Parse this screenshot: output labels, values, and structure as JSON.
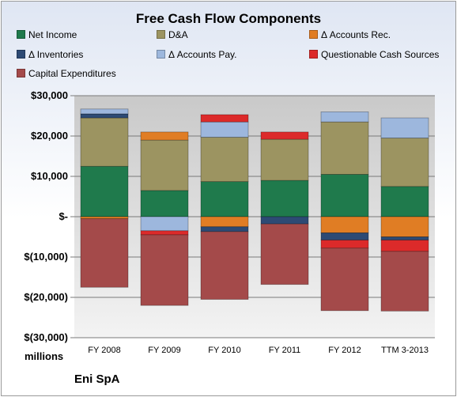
{
  "chart_data": {
    "type": "bar",
    "stacked": true,
    "title": "Free Cash Flow Components",
    "categories": [
      "FY 2008",
      "FY 2009",
      "FY 2010",
      "FY 2011",
      "FY 2012",
      "TTM 3-2013"
    ],
    "ylim": [
      -30000,
      30000
    ],
    "yticks": [
      30000,
      20000,
      10000,
      0,
      -10000,
      -20000,
      -30000
    ],
    "ytick_labels": [
      "$30,000",
      "$20,000",
      "$10,000",
      "$-",
      "$(10,000)",
      "$(20,000)",
      "$(30,000)"
    ],
    "ylabel": "millions",
    "legend_position": "top",
    "series": [
      {
        "name": "Net Income",
        "color": "#1f7a4c",
        "values": [
          12500,
          6500,
          8700,
          9000,
          10500,
          7500
        ]
      },
      {
        "name": "D&A",
        "color": "#9c9461",
        "values": [
          12000,
          12500,
          11000,
          10200,
          13000,
          12000
        ]
      },
      {
        "name": "Δ Accounts Rec.",
        "color": "#e07d24",
        "values": [
          -500,
          2000,
          -2500,
          0,
          -4000,
          -5000
        ]
      },
      {
        "name": "Δ Inventories",
        "color": "#2d4a74",
        "values": [
          1000,
          0,
          -1200,
          -1800,
          -1800,
          -800
        ]
      },
      {
        "name": "Δ Accounts Pay.",
        "color": "#9db7dd",
        "values": [
          1200,
          -3500,
          3800,
          0,
          2500,
          5000
        ]
      },
      {
        "name": "Questionable Cash Sources",
        "color": "#dc2a2a",
        "values": [
          0,
          -1000,
          1800,
          1800,
          -2000,
          -2800
        ]
      },
      {
        "name": "Capital Expenditures",
        "color": "#a44a4a",
        "values": [
          -17000,
          -17500,
          -16800,
          -15000,
          -15500,
          -14800
        ]
      }
    ]
  },
  "footer": {
    "company": "Eni SpA"
  }
}
